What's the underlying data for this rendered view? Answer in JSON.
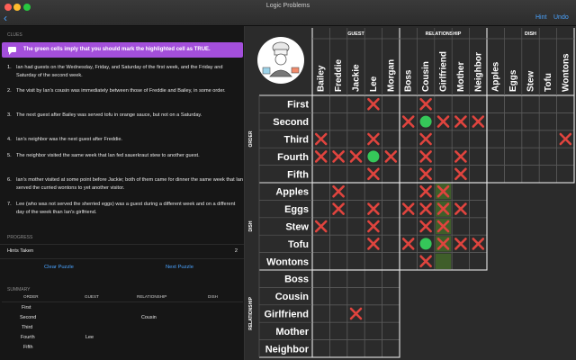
{
  "window": {
    "title": "Logic Problems",
    "back_label": "‹",
    "hint_label": "Hint",
    "undo_label": "Undo"
  },
  "left": {
    "clues_label": "CLUES",
    "banner_text": "The green cells imply that you should mark the highlighted cell as TRUE.",
    "clues": [
      {
        "num": "1.",
        "text": "Ian had guests on the Wednesday, Friday, and Saturday of the first week, and the Friday and Saturday of the second week."
      },
      {
        "num": "2.",
        "text": "The visit by Ian's cousin was immediately between those of Freddie and Bailey, in some order."
      },
      {
        "num": "3.",
        "text": "The next guest after Bailey was served tofu in orange sauce, but not on a Saturday."
      },
      {
        "num": "4.",
        "text": "Ian's neighbor was the next guest after Freddie."
      },
      {
        "num": "5.",
        "text": "The neighbor visited the same week that Ian fed sauerkraut stew to another guest."
      },
      {
        "num": "6.",
        "text": "Ian's mother visited at some point before Jackie; both of them came for dinner the same week that Ian served the curried wontons to yet another visitor."
      },
      {
        "num": "7.",
        "text": "Lee (who was not served the sherried eggs) was a guest during a different week and on a different day of the week than Ian's girlfriend."
      }
    ],
    "progress_label": "PROGRESS",
    "hints_taken_label": "Hints Taken",
    "hints_taken_value": "2",
    "clear_label": "Clear Puzzle",
    "next_label": "Next Puzzle",
    "summary_label": "SUMMARY",
    "summary_headers": [
      "ORDER",
      "GUEST",
      "RELATIONSHIP",
      "DISH"
    ],
    "summary_rows": [
      [
        "First",
        "",
        "",
        ""
      ],
      [
        "Second",
        "",
        "Cousin",
        ""
      ],
      [
        "Third",
        "",
        "",
        ""
      ],
      [
        "Fourth",
        "Lee",
        "",
        ""
      ],
      [
        "Fifth",
        "",
        "",
        ""
      ]
    ]
  },
  "grid": {
    "groups": [
      {
        "name": "GUEST",
        "items": [
          "Bailey",
          "Freddie",
          "Jackie",
          "Lee",
          "Morgan"
        ]
      },
      {
        "name": "RELATIONSHIP",
        "items": [
          "Boss",
          "Cousin",
          "Girlfriend",
          "Mother",
          "Neighbor"
        ]
      },
      {
        "name": "DISH",
        "items": [
          "Apples",
          "Eggs",
          "Stew",
          "Tofu",
          "Wontons"
        ]
      }
    ],
    "row_groups": [
      {
        "name": "ORDER",
        "items": [
          "First",
          "Second",
          "Third",
          "Fourth",
          "Fifth"
        ]
      },
      {
        "name": "DISH",
        "items": [
          "Apples",
          "Eggs",
          "Stew",
          "Tofu",
          "Wontons"
        ]
      },
      {
        "name": "RELATIONSHIP",
        "items": [
          "Boss",
          "Cousin",
          "Girlfriend",
          "Mother",
          "Neighbor"
        ]
      }
    ],
    "marks": {
      "x": [
        [
          0,
          3
        ],
        [
          0,
          6
        ],
        [
          1,
          5
        ],
        [
          1,
          7
        ],
        [
          1,
          8
        ],
        [
          1,
          9
        ],
        [
          2,
          0
        ],
        [
          2,
          3
        ],
        [
          2,
          6
        ],
        [
          2,
          14
        ],
        [
          3,
          0
        ],
        [
          3,
          1
        ],
        [
          3,
          2
        ],
        [
          3,
          4
        ],
        [
          3,
          6
        ],
        [
          3,
          8
        ],
        [
          4,
          3
        ],
        [
          4,
          6
        ],
        [
          4,
          8
        ],
        [
          5,
          1
        ],
        [
          5,
          6
        ],
        [
          6,
          1
        ],
        [
          6,
          3
        ],
        [
          6,
          5
        ],
        [
          6,
          6
        ],
        [
          6,
          8
        ],
        [
          7,
          0
        ],
        [
          7,
          3
        ],
        [
          7,
          6
        ],
        [
          8,
          3
        ],
        [
          8,
          5
        ],
        [
          8,
          8
        ],
        [
          8,
          9
        ],
        [
          9,
          6
        ],
        [
          12,
          2
        ]
      ],
      "dot": [
        [
          1,
          6
        ],
        [
          3,
          3
        ],
        [
          8,
          6
        ]
      ],
      "highlight": [
        [
          5,
          7
        ],
        [
          6,
          7
        ],
        [
          7,
          7
        ],
        [
          8,
          7
        ],
        [
          9,
          7
        ]
      ],
      "highlight_x": [
        [
          5,
          7
        ],
        [
          6,
          7
        ],
        [
          7,
          7
        ],
        [
          8,
          7
        ]
      ]
    },
    "chef_icon": "chef-icon"
  },
  "colors": {
    "accent": "#4aa3ff",
    "banner": "#a34fdb",
    "mark_x": "#e0443e",
    "mark_dot": "#35c759",
    "highlight": "#3f5e2a"
  }
}
